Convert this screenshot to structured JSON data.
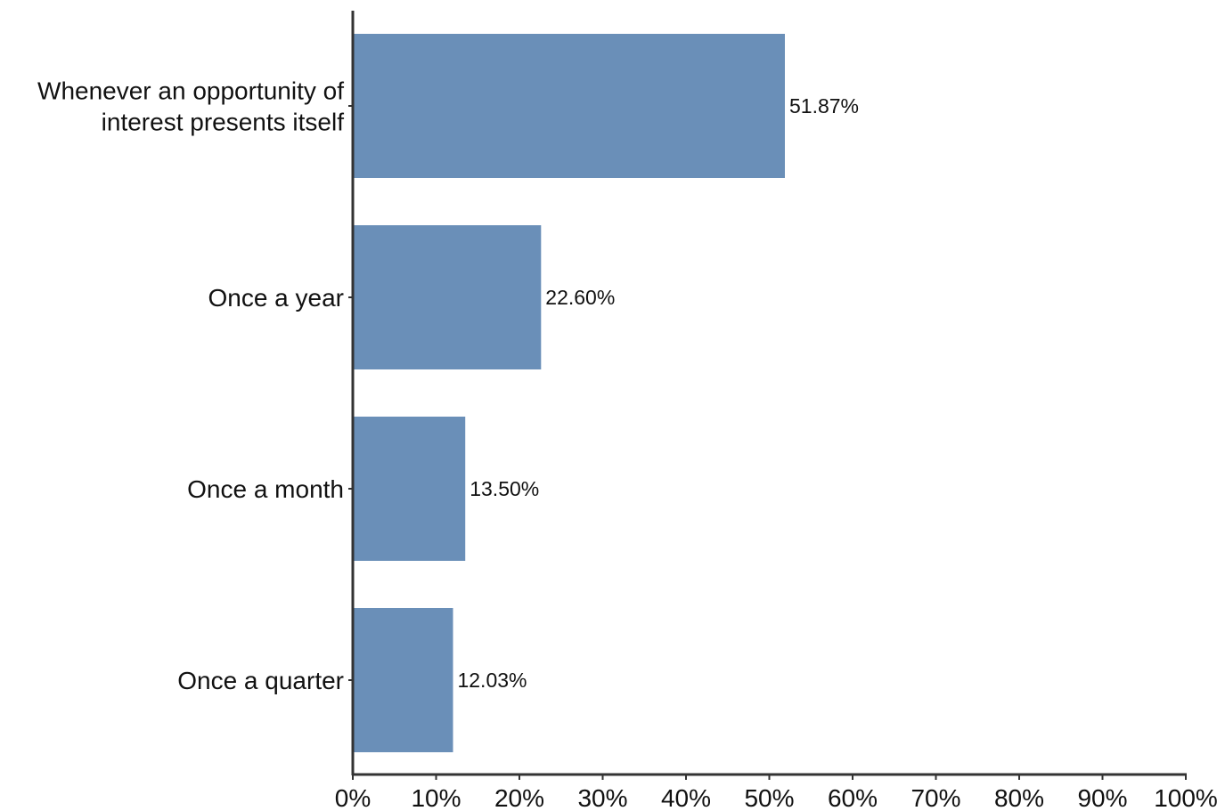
{
  "chart_data": {
    "type": "bar",
    "orientation": "horizontal",
    "categories": [
      [
        "Whenever an opportunity of",
        "interest presents itself"
      ],
      [
        "Once a year"
      ],
      [
        "Once a month"
      ],
      [
        "Once a quarter"
      ]
    ],
    "values": [
      51.87,
      22.6,
      13.5,
      12.03
    ],
    "value_labels": [
      "51.87%",
      "22.60%",
      "13.50%",
      "12.03%"
    ],
    "x_ticks": [
      "0%",
      "10%",
      "20%",
      "30%",
      "40%",
      "50%",
      "60%",
      "70%",
      "80%",
      "90%",
      "100%"
    ],
    "xlim": [
      0,
      100
    ],
    "title": "",
    "xlabel": "",
    "ylabel": "",
    "grid": false,
    "bar_color": "#6a8fb8",
    "axis_color": "#333333"
  }
}
